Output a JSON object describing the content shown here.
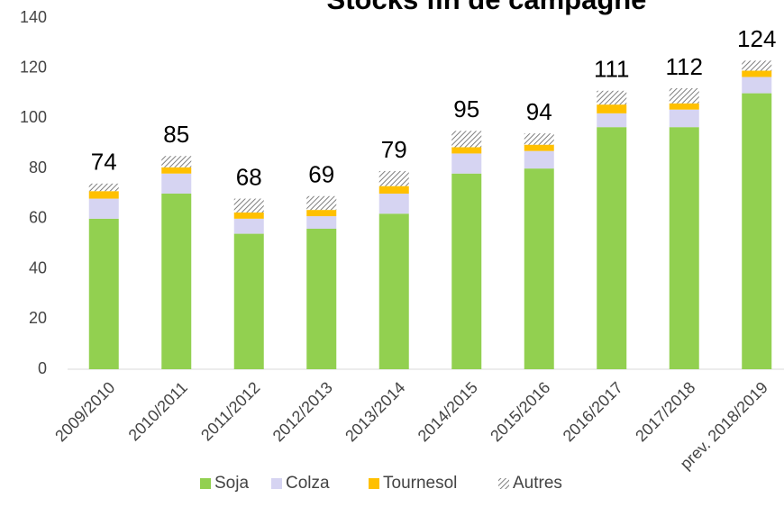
{
  "chart_data": {
    "type": "stacked_bar",
    "title": "Stocks fin de campagne",
    "categories": [
      "2009/2010",
      "2010/2011",
      "2011/2012",
      "2012/2013",
      "2013/2014",
      "2014/2015",
      "2015/2016",
      "2016/2017",
      "2017/2018",
      "prev. 2018/2019"
    ],
    "series": [
      {
        "name": "Soja",
        "color": "#92d050",
        "values": [
          60,
          70,
          54,
          56,
          62,
          78,
          80,
          96.5,
          96.5,
          110
        ]
      },
      {
        "name": "Colza",
        "color": "#d6d4f2",
        "values": [
          8,
          8,
          6,
          5,
          8,
          8,
          7,
          5.5,
          7,
          6.5
        ]
      },
      {
        "name": "Tournesol",
        "color": "#ffc000",
        "values": [
          3,
          2.5,
          2.5,
          2.5,
          3,
          2.5,
          2.5,
          3.5,
          2.5,
          2.5
        ]
      },
      {
        "name": "Autres",
        "color": "#7f7f7f",
        "hatch": true,
        "values": [
          3,
          4.5,
          5.5,
          5.5,
          6,
          6.5,
          4.5,
          5.5,
          6,
          4
        ]
      }
    ],
    "totals": [
      74,
      85,
      68,
      69,
      79,
      95,
      94,
      111,
      112,
      124
    ],
    "ylim": [
      0,
      140
    ],
    "yticks": [
      0,
      20,
      40,
      60,
      80,
      100,
      120,
      140
    ],
    "grid": false,
    "legend": "bottom"
  }
}
